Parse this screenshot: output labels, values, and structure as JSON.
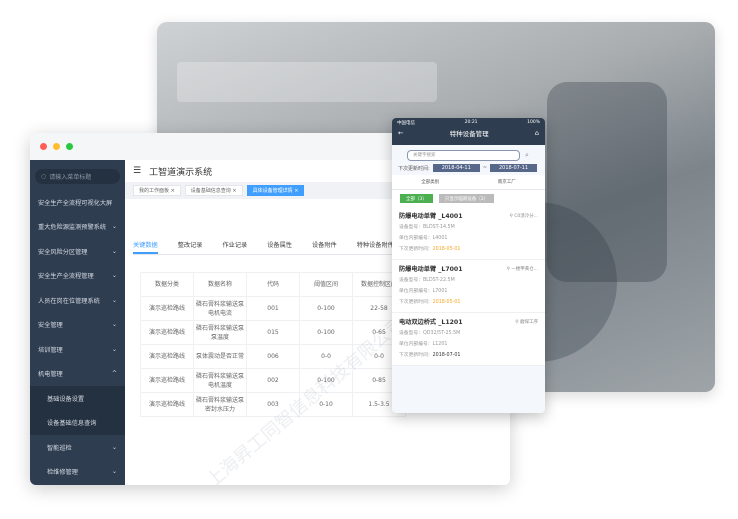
{
  "desktop": {
    "search_placeholder": "请输入菜单标题",
    "app_title": "工智道演示系统",
    "menu": [
      {
        "label": "安全生产全流程可视化大屏"
      },
      {
        "label": "重大危险源监测预警系统"
      },
      {
        "label": "安全风险分区管理"
      },
      {
        "label": "安全生产全流程管理"
      },
      {
        "label": "人员在岗在位管理系统"
      },
      {
        "label": "安全管理"
      },
      {
        "label": "培训管理"
      },
      {
        "label": "机电管理"
      }
    ],
    "submenu": [
      {
        "label": "基础设备设置"
      },
      {
        "label": "设备基础信息查询"
      }
    ],
    "submenu2": [
      {
        "label": "智能巡检"
      },
      {
        "label": "检维修管理"
      }
    ],
    "tags": [
      "我的工作面板",
      "设备基础信息查询",
      "具体设备管理详情"
    ],
    "tabs": [
      "关键数据",
      "整改记录",
      "作业记录",
      "设备属性",
      "设备附件",
      "特种设备附件"
    ],
    "table": {
      "headers": [
        "数据分类",
        "数据名称",
        "代码",
        "阈值区间",
        "数据控制区间"
      ],
      "rows": [
        [
          "演示巡检路线",
          "磷石膏料浆输送泵电机电流",
          "001",
          "0-100",
          "22-58"
        ],
        [
          "演示巡检路线",
          "磷石膏料浆输送泵泵温度",
          "015",
          "0-100",
          "0-65"
        ],
        [
          "演示巡检路线",
          "泵体震动是否正常",
          "006",
          "0-0",
          "0-0"
        ],
        [
          "演示巡检路线",
          "磷石膏料浆输送泵电机温度",
          "002",
          "0-100",
          "0-85"
        ],
        [
          "演示巡检路线",
          "磷石膏料浆输送泵密封水压力",
          "003",
          "0-10",
          "1.5-3.5"
        ]
      ]
    },
    "watermark": "上海昇工同智信息科技有限公司"
  },
  "mobile": {
    "carrier": "中国电信",
    "time": "20:21",
    "battery": "100%",
    "title": "特种设备管理",
    "search_placeholder": "关键字搜索",
    "date_label": "下次更新时间:",
    "date_from": "2018-04-11",
    "date_sep": "~",
    "date_to": "2018-07-11",
    "filter1": "全部类别",
    "filter2": "南京工厂",
    "btn_all": "全部（3）",
    "btn_near": "只显示临期设备（2）",
    "cards": [
      {
        "title": "防爆电动单臂 _L4001",
        "loc": "C0渍冷分...",
        "model": "设备型号：BLDST-14.5M",
        "code": "单位内部编号：L4001",
        "next_label": "下次更新时间：",
        "next": "2018-05-01",
        "warn": true
      },
      {
        "title": "防爆电动单臂 _L7001",
        "loc": "一楼甲黄仓...",
        "model": "设备型号：BLDST-22.5M",
        "code": "单位内部编号：L7001",
        "next_label": "下次更新时间：",
        "next": "2018-05-01",
        "warn": true
      },
      {
        "title": "电动双边桥式 _L1201",
        "loc": "磨煤工序",
        "model": "设备型号：QD32/5T-25.5M",
        "code": "单位内部编号：L1201",
        "next_label": "下次更新时间：",
        "next": "2018-07-01",
        "warn": false
      }
    ]
  },
  "colors": {
    "accent": "#409eff",
    "sidebar": "#2f3d50",
    "warning": "#f5a623",
    "green": "#4caf50"
  }
}
